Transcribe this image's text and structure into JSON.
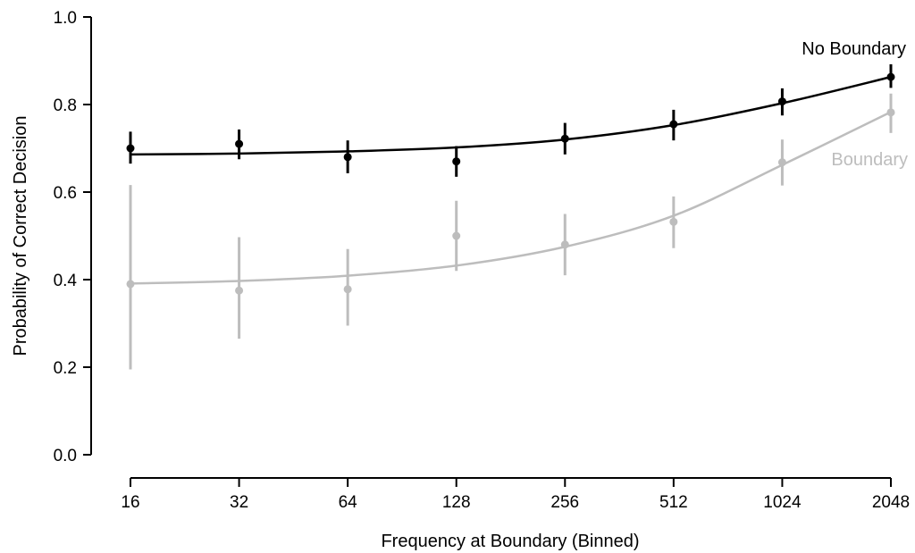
{
  "chart_data": {
    "type": "line",
    "title": "",
    "xlabel": "Frequency at Boundary (Binned)",
    "ylabel": "Probability of Correct Decision",
    "x_scale": "log2",
    "x_ticks": [
      16,
      32,
      64,
      128,
      256,
      512,
      1024,
      2048
    ],
    "x_tick_labels": [
      "16",
      "32",
      "64",
      "128",
      "256",
      "512",
      "1024",
      "2048"
    ],
    "ylim": [
      0.0,
      1.0
    ],
    "y_ticks": [
      0.0,
      0.2,
      0.4,
      0.6,
      0.8,
      1.0
    ],
    "y_tick_labels": [
      "0.0",
      "0.2",
      "0.4",
      "0.6",
      "0.8",
      "1.0"
    ],
    "grid": false,
    "legend": "inline labels",
    "series": [
      {
        "name": "No Boundary",
        "color": "#000000",
        "x": [
          16,
          32,
          64,
          128,
          256,
          512,
          1024,
          2048
        ],
        "values": [
          0.7,
          0.71,
          0.68,
          0.67,
          0.722,
          0.755,
          0.807,
          0.863
        ],
        "err_low": [
          0.665,
          0.675,
          0.643,
          0.635,
          0.686,
          0.718,
          0.775,
          0.838
        ],
        "err_high": [
          0.738,
          0.743,
          0.718,
          0.705,
          0.758,
          0.788,
          0.837,
          0.892
        ],
        "fit": [
          0.686,
          0.688,
          0.693,
          0.702,
          0.72,
          0.753,
          0.803,
          0.863
        ]
      },
      {
        "name": "Boundary",
        "color": "#bdbdbd",
        "x": [
          16,
          32,
          64,
          128,
          256,
          512,
          1024,
          2048
        ],
        "values": [
          0.39,
          0.375,
          0.378,
          0.5,
          0.48,
          0.532,
          0.668,
          0.782
        ],
        "err_low": [
          0.195,
          0.265,
          0.295,
          0.42,
          0.41,
          0.472,
          0.615,
          0.735
        ],
        "err_high": [
          0.616,
          0.497,
          0.47,
          0.58,
          0.55,
          0.59,
          0.72,
          0.825
        ],
        "fit": [
          0.391,
          0.397,
          0.409,
          0.432,
          0.475,
          0.546,
          0.662,
          0.783
        ]
      }
    ]
  }
}
